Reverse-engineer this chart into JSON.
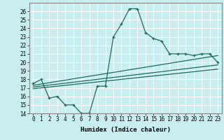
{
  "xlabel": "Humidex (Indice chaleur)",
  "bg_color": "#c8eef0",
  "grid_color": "#ffffff",
  "line_color": "#1a6b5a",
  "xlim": [
    -0.5,
    23.5
  ],
  "ylim": [
    14,
    27
  ],
  "xticks": [
    0,
    1,
    2,
    3,
    4,
    5,
    6,
    7,
    8,
    9,
    10,
    11,
    12,
    13,
    14,
    15,
    16,
    17,
    18,
    19,
    20,
    21,
    22,
    23
  ],
  "yticks": [
    14,
    15,
    16,
    17,
    18,
    19,
    20,
    21,
    22,
    23,
    24,
    25,
    26
  ],
  "series1_x": [
    0,
    1,
    2,
    3,
    4,
    5,
    6,
    7,
    8,
    9,
    10,
    11,
    12,
    13,
    14,
    15,
    16,
    17,
    18,
    19,
    20,
    21,
    22,
    23
  ],
  "series1_y": [
    17.5,
    18.0,
    15.8,
    16.0,
    15.0,
    15.0,
    14.0,
    14.0,
    17.2,
    17.2,
    23.0,
    24.5,
    26.3,
    26.3,
    23.5,
    22.8,
    22.5,
    21.0,
    21.0,
    21.0,
    20.8,
    21.0,
    21.0,
    20.0
  ],
  "series2_x": [
    0,
    23
  ],
  "series2_y": [
    17.3,
    20.8
  ],
  "series3_x": [
    0,
    23
  ],
  "series3_y": [
    17.1,
    19.7
  ],
  "series4_x": [
    0,
    23
  ],
  "series4_y": [
    16.9,
    19.2
  ]
}
